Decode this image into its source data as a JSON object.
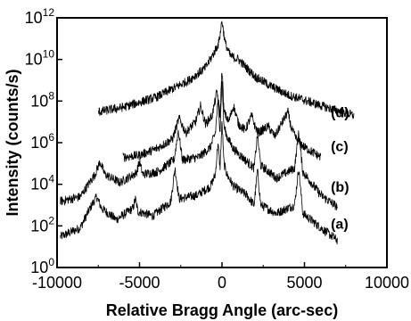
{
  "chart_data": {
    "type": "line",
    "title": "",
    "xlabel": "Relative Bragg Angle (arc-sec)",
    "ylabel": "Intensity (counts/s)",
    "xlim": [
      -10000,
      10000
    ],
    "ylim": [
      1,
      1000000000000
    ],
    "yscale": "log",
    "grid": false,
    "legend": "none",
    "x_ticks": [
      "-10000",
      "-5000",
      "0",
      "5000",
      "10000"
    ],
    "y_ticks": [
      {
        "base": "10",
        "exp": "0"
      },
      {
        "base": "10",
        "exp": "2"
      },
      {
        "base": "10",
        "exp": "4"
      },
      {
        "base": "10",
        "exp": "6"
      },
      {
        "base": "10",
        "exp": "8"
      },
      {
        "base": "10",
        "exp": "10"
      },
      {
        "base": "10",
        "exp": "12"
      }
    ],
    "series": [
      {
        "name": "(a)",
        "x": [
          -9800,
          -8600,
          -7900,
          -7600,
          -7300,
          -6400,
          -5400,
          -5250,
          -5100,
          -4200,
          -3100,
          -2850,
          -2600,
          -1500,
          -700,
          -400,
          -250,
          -120,
          0,
          120,
          300,
          700,
          1500,
          1950,
          2150,
          2350,
          3300,
          4400,
          4650,
          4900,
          6000,
          7000
        ],
        "y": [
          30,
          80,
          1000,
          2500,
          700,
          200,
          700,
          2000,
          500,
          300,
          1500,
          60000,
          2000,
          3000,
          8000,
          30000,
          1000000,
          60000,
          10000000,
          100000,
          30000,
          8000,
          3000,
          1000,
          50000,
          1000,
          400,
          1000,
          60000,
          400,
          80,
          20
        ]
      },
      {
        "name": "(b)",
        "x": [
          -9800,
          -8600,
          -7700,
          -7400,
          -7100,
          -6200,
          -5200,
          -5000,
          -4800,
          -3900,
          -2900,
          -2650,
          -2400,
          -1400,
          -700,
          -400,
          -250,
          -120,
          0,
          120,
          300,
          700,
          1400,
          1950,
          2150,
          2350,
          3300,
          4400,
          4650,
          4900,
          6000,
          7000
        ],
        "y": [
          1500,
          2500,
          30000,
          120000,
          30000,
          12000,
          35000,
          120000,
          30000,
          40000,
          150000,
          4000000,
          150000,
          200000,
          600000,
          3000000,
          100000000,
          4000000,
          1000000000,
          6000000,
          2000000,
          500000,
          150000,
          60000,
          2500000,
          80000,
          20000,
          60000,
          3000000,
          40000,
          3000,
          800
        ]
      },
      {
        "name": "(c)",
        "x": [
          -6000,
          -5000,
          -4000,
          -3000,
          -2600,
          -2200,
          -1600,
          -1300,
          -1000,
          -600,
          -300,
          -120,
          0,
          120,
          400,
          700,
          1000,
          1400,
          1800,
          2000,
          2200,
          2800,
          3200,
          3600,
          4000,
          4200,
          4500,
          5000,
          6000
        ],
        "y": [
          200000,
          250000,
          500000,
          1500000,
          15000000,
          3000000,
          10000000,
          60000000,
          8000000,
          20000000,
          300000000,
          20000000,
          4000000000,
          30000000,
          10000000,
          60000000,
          8000000,
          4000000,
          20000000,
          6000000,
          3000000,
          6000000,
          2000000,
          8000000,
          30000000,
          5000000,
          1500000,
          600000,
          200000
        ]
      },
      {
        "name": "(d)",
        "x": [
          -7500,
          -6000,
          -4000,
          -2000,
          -1000,
          -500,
          -200,
          -80,
          0,
          80,
          200,
          500,
          1000,
          2000,
          3000,
          4000,
          6000,
          8000
        ],
        "y": [
          30000000,
          50000000,
          150000000,
          1000000000,
          4000000000,
          20000000000,
          60000000000,
          250000000000,
          800000000000,
          250000000000,
          60000000000,
          15000000000,
          10000000000,
          1500000000,
          500000000,
          200000000,
          60000000,
          20000000
        ]
      }
    ]
  }
}
